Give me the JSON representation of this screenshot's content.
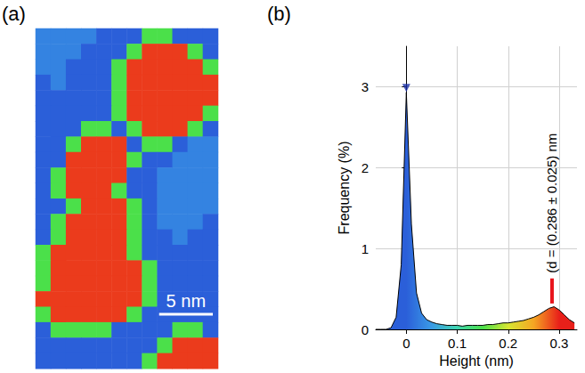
{
  "chart_data": [
    {
      "type": "heatmap",
      "title": "(a)",
      "tick_labels": false,
      "xlim": [
        0,
        17
      ],
      "ylim": [
        0,
        31.7
      ],
      "scale_bar": {
        "value": 5,
        "label": "5 nm"
      },
      "color_range": [
        0,
        0.3
      ],
      "colorscale": [
        "#2b5fd9",
        "#3a9be6",
        "#3fd6b0",
        "#4be04a",
        "#d8e632",
        "#f5a623",
        "#e8201a"
      ],
      "heights_nm": [
        [
          0.03,
          0.03,
          0.03,
          0.03,
          0,
          0,
          0,
          0.15,
          0.15,
          0,
          0,
          0
        ],
        [
          0.03,
          0.03,
          0.03,
          0,
          0,
          0,
          0.15,
          0.29,
          0.29,
          0.29,
          0.15,
          0
        ],
        [
          0.03,
          0.03,
          0,
          0,
          0,
          0.15,
          0.29,
          0.29,
          0.29,
          0.29,
          0.29,
          0.15
        ],
        [
          0,
          0.03,
          0,
          0,
          0,
          0.15,
          0.29,
          0.29,
          0.29,
          0.29,
          0.29,
          0.29
        ],
        [
          0,
          0,
          0,
          0,
          0,
          0.15,
          0.29,
          0.29,
          0.29,
          0.29,
          0.29,
          0.29
        ],
        [
          0,
          0,
          0,
          0,
          0,
          0.15,
          0.29,
          0.29,
          0.29,
          0.29,
          0.29,
          0.15
        ],
        [
          0,
          0,
          0,
          0.15,
          0.15,
          0,
          0.15,
          0.29,
          0.29,
          0.29,
          0.15,
          0
        ],
        [
          0,
          0,
          0.15,
          0.29,
          0.29,
          0.29,
          0,
          0.15,
          0.15,
          0,
          0.03,
          0.03
        ],
        [
          0,
          0,
          0.29,
          0.29,
          0.29,
          0.29,
          0.15,
          0,
          0,
          0.03,
          0.03,
          0.03
        ],
        [
          0,
          0.15,
          0.29,
          0.29,
          0.29,
          0.29,
          0,
          0,
          0.03,
          0.03,
          0.03,
          0.03
        ],
        [
          0,
          0.15,
          0.29,
          0.29,
          0.29,
          0.15,
          0,
          0,
          0.03,
          0.03,
          0.03,
          0.03
        ],
        [
          0,
          0,
          0.15,
          0.29,
          0.29,
          0.29,
          0.15,
          0,
          0.03,
          0.03,
          0.03,
          0.03
        ],
        [
          0,
          0.15,
          0.29,
          0.29,
          0.29,
          0.29,
          0.15,
          0,
          0.03,
          0.03,
          0.03,
          0
        ],
        [
          0,
          0.15,
          0.29,
          0.29,
          0.29,
          0.29,
          0.15,
          0,
          0,
          0.03,
          0,
          0
        ],
        [
          0.15,
          0.29,
          0.29,
          0.29,
          0.29,
          0.29,
          0.15,
          0,
          0,
          0,
          0,
          0
        ],
        [
          0.15,
          0.29,
          0.29,
          0.29,
          0.29,
          0.29,
          0.29,
          0.15,
          0,
          0,
          0,
          0
        ],
        [
          0.15,
          0.29,
          0.29,
          0.29,
          0.29,
          0.29,
          0.29,
          0.15,
          0,
          0,
          0,
          0
        ],
        [
          0.29,
          0.29,
          0.29,
          0.29,
          0.29,
          0.29,
          0.29,
          0.15,
          0,
          0,
          0,
          0
        ],
        [
          0.15,
          0.29,
          0.29,
          0.29,
          0.29,
          0.29,
          0.15,
          0,
          0,
          0,
          0,
          0
        ],
        [
          0,
          0.15,
          0.15,
          0.15,
          0.15,
          0,
          0,
          0,
          0,
          0.15,
          0.15,
          0
        ],
        [
          0,
          0,
          0,
          0,
          0,
          0,
          0,
          0,
          0.15,
          0.29,
          0.29,
          0.29
        ],
        [
          0,
          0,
          0,
          0,
          0,
          0,
          0,
          0.15,
          0.29,
          0.29,
          0.29,
          0.29
        ]
      ]
    },
    {
      "type": "area",
      "title": "(b)",
      "x_label": "Height (nm)",
      "y_label": "Frequency (%)",
      "x": [
        -0.06,
        -0.05,
        -0.04,
        -0.03,
        -0.02,
        -0.01,
        0,
        0.01,
        0.02,
        0.03,
        0.04,
        0.05,
        0.06,
        0.07,
        0.08,
        0.09,
        0.1,
        0.11,
        0.12,
        0.13,
        0.14,
        0.15,
        0.16,
        0.17,
        0.18,
        0.19,
        0.2,
        0.21,
        0.22,
        0.23,
        0.24,
        0.25,
        0.26,
        0.27,
        0.28,
        0.29,
        0.3,
        0.31,
        0.32,
        0.33
      ],
      "values": [
        0,
        0,
        0,
        0.02,
        0.15,
        0.8,
        2.93,
        1.3,
        0.45,
        0.2,
        0.12,
        0.09,
        0.07,
        0.06,
        0.05,
        0.05,
        0.05,
        0.04,
        0.05,
        0.05,
        0.05,
        0.05,
        0.06,
        0.06,
        0.07,
        0.08,
        0.08,
        0.09,
        0.1,
        0.11,
        0.13,
        0.15,
        0.18,
        0.22,
        0.26,
        0.28,
        0.24,
        0.18,
        0.12,
        0.08
      ],
      "xlim": [
        -0.06,
        0.335
      ],
      "ylim": [
        0,
        3.5
      ],
      "xticks": [
        0,
        0.1,
        0.2,
        0.3
      ],
      "yticks": [
        0,
        1,
        2,
        3
      ],
      "grid": true,
      "color": "#000000",
      "line_style": "solid",
      "color_range": [
        0,
        0.3
      ],
      "colorscale": [
        "#2b5fd9",
        "#3a9be6",
        "#3fd6b0",
        "#4be04a",
        "#d8e632",
        "#f5a623",
        "#e8201a"
      ],
      "peak": {
        "x": 0,
        "y": 2.93,
        "color": "#1a2fa8"
      },
      "annotation": {
        "text": "(d = (0.286 ± 0.025) nm",
        "x": 0.286,
        "y": [
          0.32,
          0.63
        ],
        "color": "#e8141c"
      }
    }
  ]
}
